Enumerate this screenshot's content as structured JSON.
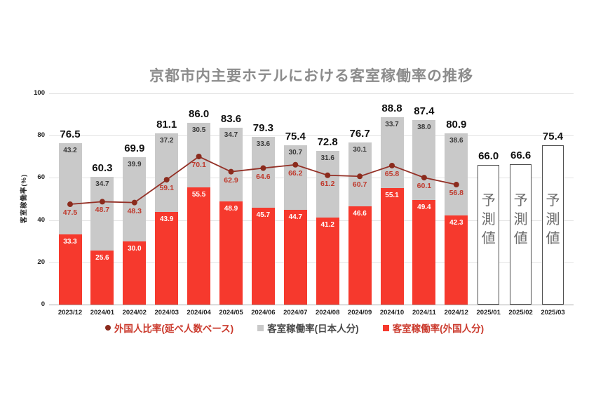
{
  "chart": {
    "title": "京都市内主要ホテルにおける客室稼働率の推移",
    "y_axis_label": "客室稼働率(%)",
    "legend": [
      {
        "label": "外国人比率(延べ人数ベース)",
        "marker": "circle",
        "color": "#8b2b1d"
      },
      {
        "label": "客室稼働率(日本人分)",
        "marker": "square",
        "color": "#c9c9c9"
      },
      {
        "label": "客室稼働率(外国人分)",
        "marker": "square",
        "color": "#f6392d"
      }
    ],
    "colors": {
      "bar_foreign": "#f6392d",
      "bar_japanese": "#c9c9c9",
      "line": "#943026",
      "line_dot": "#8b2b1d",
      "line_label": "#bf3a2d",
      "title": "#8c8c8c",
      "forecast_border": "#4d4d4d",
      "forecast_text": "#6b6b6b"
    }
  },
  "chart_data": {
    "type": "bar",
    "subtype": "stacked-bars-with-line-overlay",
    "title": "京都市内主要ホテルにおける客室稼働率の推移",
    "ylabel": "客室稼働率(%)",
    "ylim": [
      0,
      100
    ],
    "yticks": [
      0,
      20,
      40,
      60,
      80,
      100
    ],
    "grid": true,
    "legend_position": "bottom",
    "categories": [
      "2023/12",
      "2024/01",
      "2024/02",
      "2024/03",
      "2024/04",
      "2024/05",
      "2024/06",
      "2024/07",
      "2024/08",
      "2024/09",
      "2024/10",
      "2024/11",
      "2024/12",
      "2025/01",
      "2025/02",
      "2025/03"
    ],
    "series": [
      {
        "name": "客室稼働率(外国人分)",
        "type": "bar-stack-bottom",
        "color": "#f6392d",
        "values": [
          33.3,
          25.6,
          30.0,
          43.9,
          55.5,
          48.9,
          45.7,
          44.7,
          41.2,
          46.6,
          55.1,
          49.4,
          42.3,
          null,
          null,
          null
        ]
      },
      {
        "name": "客室稼働率(日本人分)",
        "type": "bar-stack-top",
        "color": "#c9c9c9",
        "values": [
          43.2,
          34.7,
          39.9,
          37.2,
          30.5,
          34.7,
          33.6,
          30.7,
          31.6,
          30.1,
          33.7,
          38.0,
          38.6,
          null,
          null,
          null
        ]
      },
      {
        "name": "外国人比率(延べ人数ベース)",
        "type": "line",
        "color": "#943026",
        "values": [
          47.5,
          48.7,
          48.3,
          59.1,
          70.1,
          62.9,
          64.6,
          66.2,
          61.2,
          60.7,
          65.8,
          60.1,
          56.8,
          null,
          null,
          null
        ]
      }
    ],
    "totals": [
      76.5,
      60.3,
      69.9,
      81.1,
      86.0,
      83.6,
      79.3,
      75.4,
      72.8,
      76.7,
      88.8,
      87.4,
      80.9,
      66.0,
      66.6,
      75.4
    ],
    "forecast": {
      "indices": [
        13,
        14,
        15
      ],
      "values": [
        66.0,
        66.6,
        75.4
      ],
      "label": "予測値"
    }
  }
}
